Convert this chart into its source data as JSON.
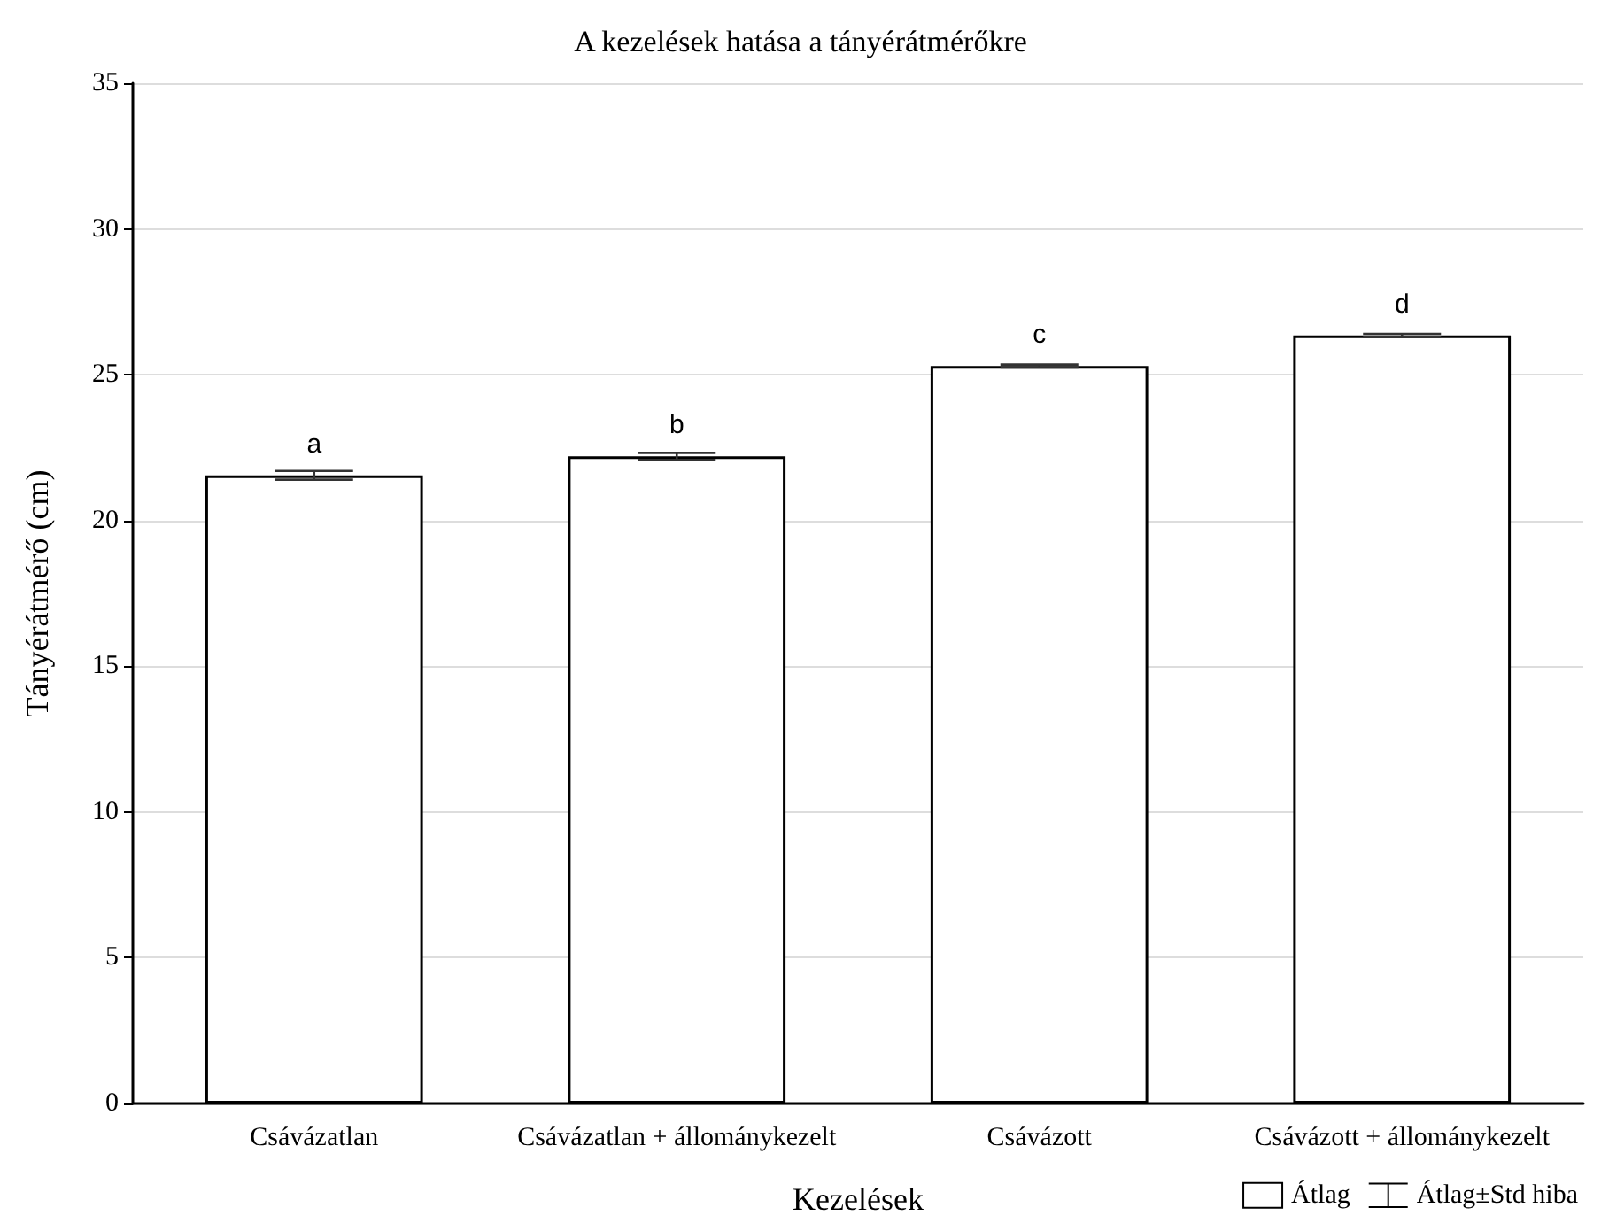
{
  "chart_data": {
    "type": "bar",
    "title": "A kezelések hatása a tányérátmérőkre",
    "xlabel": "Kezelések",
    "ylabel": "Tányérátmérő (cm)",
    "categories": [
      "Csávázatlan",
      "Csávázatlan + állománykezelt",
      "Csávázott",
      "Csávázott + állománykezelt"
    ],
    "series": [
      {
        "name": "Átlag",
        "color": "#ffffff",
        "values": [
          21.55,
          22.2,
          25.3,
          26.35
        ],
        "errors": [
          0.15,
          0.12,
          0.05,
          0.05
        ],
        "value_labels": [
          "a",
          "b",
          "c",
          "d"
        ]
      }
    ],
    "annotations": [
      "Átlag±Std hiba"
    ],
    "ylim": [
      0,
      35
    ],
    "yticks": [
      0,
      5,
      10,
      15,
      20,
      25,
      30,
      35
    ],
    "grid": "y",
    "legend": "bottom right"
  }
}
